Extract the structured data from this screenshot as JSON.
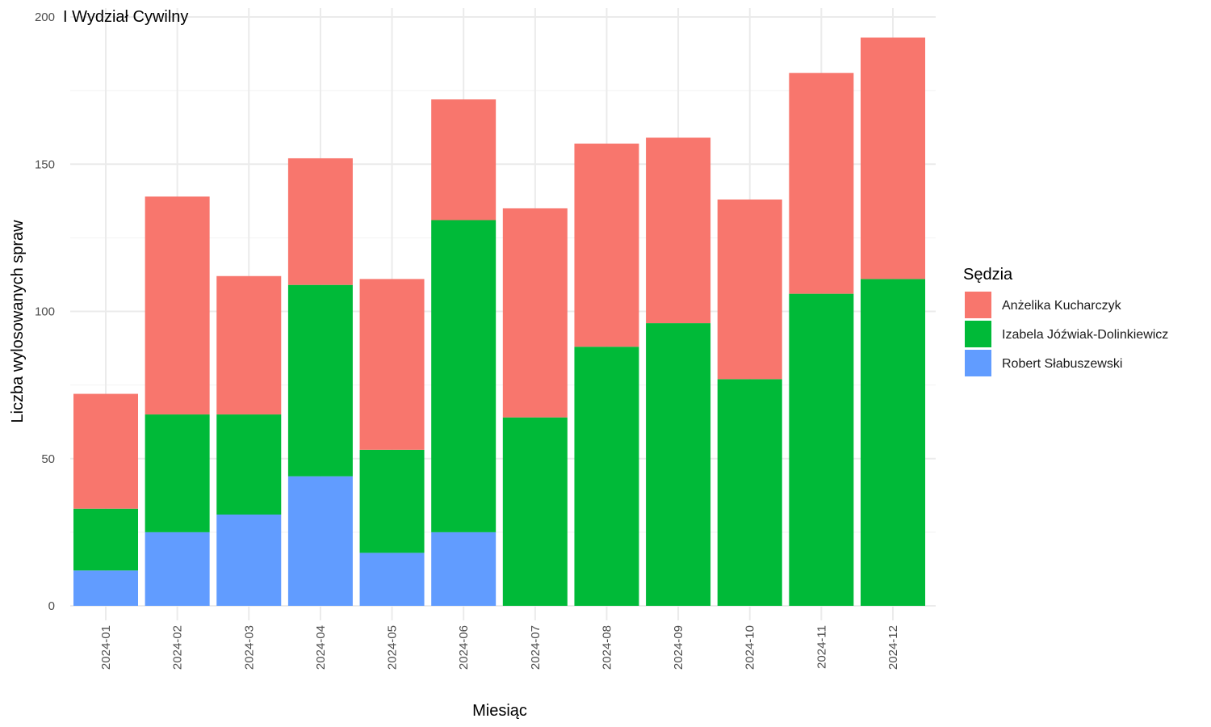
{
  "chart_data": {
    "type": "bar",
    "stacked": true,
    "title": "I Wydział Cywilny",
    "xlabel": "Miesiąc",
    "ylabel": "Liczba wylosowanych spraw",
    "ylim": [
      0,
      200
    ],
    "yticks": [
      0,
      50,
      100,
      150,
      200
    ],
    "grid": true,
    "legend_position": "right",
    "legend_title": "Sędzia",
    "categories": [
      "2024-01",
      "2024-02",
      "2024-03",
      "2024-04",
      "2024-05",
      "2024-06",
      "2024-07",
      "2024-08",
      "2024-09",
      "2024-10",
      "2024-11",
      "2024-12"
    ],
    "series": [
      {
        "name": "Robert Słabuszewski",
        "color": "#619CFF",
        "values": [
          12,
          25,
          31,
          44,
          18,
          25,
          0,
          0,
          0,
          0,
          0,
          0
        ]
      },
      {
        "name": "Izabela Jóźwiak-Dolinkiewicz",
        "color": "#00BA38",
        "values": [
          21,
          40,
          34,
          65,
          35,
          106,
          64,
          88,
          96,
          77,
          106,
          111
        ]
      },
      {
        "name": "Anżelika Kucharczyk",
        "color": "#F8766D",
        "values": [
          39,
          74,
          47,
          43,
          58,
          41,
          71,
          69,
          63,
          61,
          75,
          82
        ]
      }
    ],
    "legend_order": [
      "Anżelika Kucharczyk",
      "Izabela Jóźwiak-Dolinkiewicz",
      "Robert Słabuszewski"
    ]
  }
}
